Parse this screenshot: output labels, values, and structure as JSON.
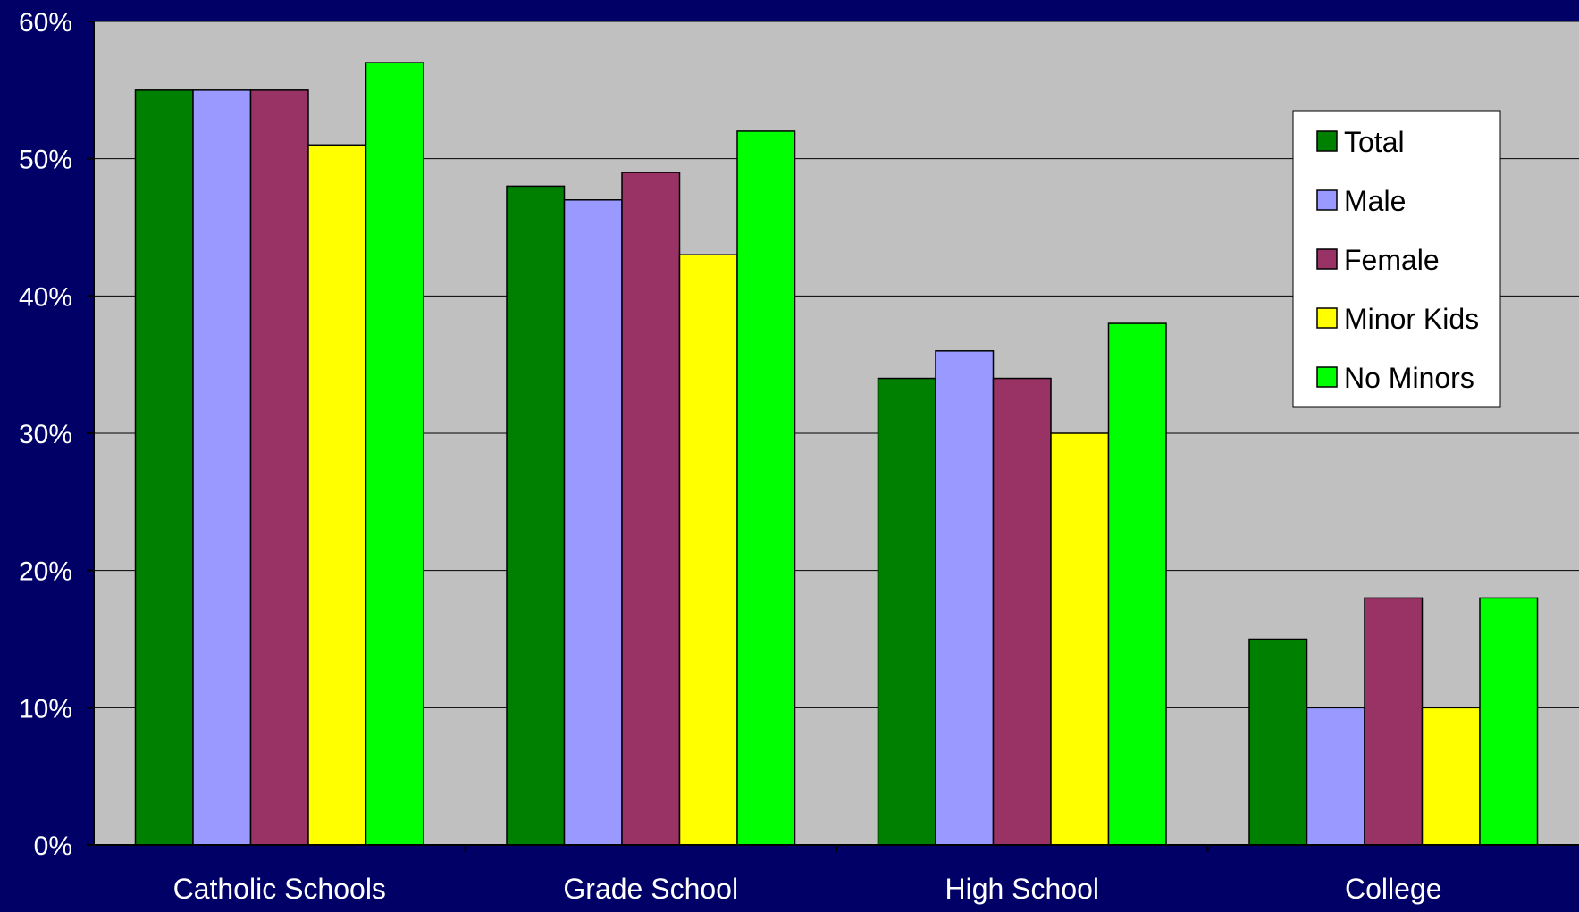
{
  "chart_data": {
    "type": "bar",
    "title": "",
    "xlabel": "",
    "ylabel": "",
    "categories": [
      "Catholic Schools",
      "Grade School",
      "High School",
      "College"
    ],
    "series": [
      {
        "name": "Total",
        "color": "#008000",
        "values": [
          55,
          48,
          34,
          15
        ]
      },
      {
        "name": "Male",
        "color": "#9999FF",
        "values": [
          55,
          47,
          36,
          10
        ]
      },
      {
        "name": "Female",
        "color": "#993366",
        "values": [
          55,
          49,
          34,
          18
        ]
      },
      {
        "name": "Minor Kids",
        "color": "#FFFF00",
        "values": [
          51,
          43,
          30,
          10
        ]
      },
      {
        "name": "No Minors",
        "color": "#00FF00",
        "values": [
          57,
          52,
          38,
          18
        ]
      }
    ],
    "ylim": [
      0,
      60
    ],
    "yticks": [
      {
        "value": 0,
        "label": "0%"
      },
      {
        "value": 10,
        "label": "10%"
      },
      {
        "value": 20,
        "label": "20%"
      },
      {
        "value": 30,
        "label": "30%"
      },
      {
        "value": 40,
        "label": "40%"
      },
      {
        "value": 50,
        "label": "50%"
      },
      {
        "value": 60,
        "label": "60%"
      }
    ],
    "grid": true,
    "legend_position": "top-right",
    "plot_background": "#C0C0C0",
    "page_background": "#000066"
  }
}
